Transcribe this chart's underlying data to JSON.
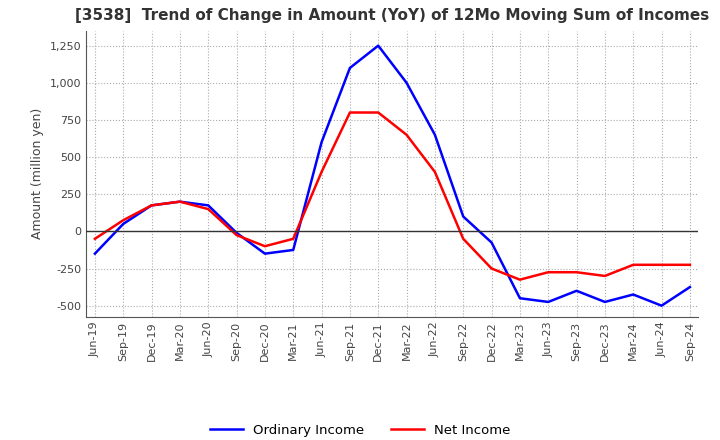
{
  "title": "[3538]  Trend of Change in Amount (YoY) of 12Mo Moving Sum of Incomes",
  "ylabel": "Amount (million yen)",
  "ylim": [
    -575,
    1350
  ],
  "yticks": [
    -500,
    -250,
    0,
    250,
    500,
    750,
    1000,
    1250
  ],
  "x_labels": [
    "Jun-19",
    "Sep-19",
    "Dec-19",
    "Mar-20",
    "Jun-20",
    "Sep-20",
    "Dec-20",
    "Mar-21",
    "Jun-21",
    "Sep-21",
    "Dec-21",
    "Mar-22",
    "Jun-22",
    "Sep-22",
    "Dec-22",
    "Mar-23",
    "Jun-23",
    "Sep-23",
    "Dec-23",
    "Mar-24",
    "Jun-24",
    "Sep-24"
  ],
  "ordinary_income": [
    -150,
    50,
    175,
    200,
    175,
    -10,
    -150,
    -125,
    600,
    1100,
    1250,
    1000,
    650,
    100,
    -75,
    -450,
    -475,
    -400,
    -475,
    -425,
    -500,
    -375
  ],
  "net_income": [
    -50,
    75,
    175,
    200,
    150,
    -25,
    -100,
    -50,
    400,
    800,
    800,
    650,
    400,
    -50,
    -250,
    -325,
    -275,
    -275,
    -300,
    -225,
    -225,
    -225
  ],
  "ordinary_income_color": "#0000ff",
  "net_income_color": "#ff0000",
  "grid_color": "#aaaaaa",
  "background_color": "#ffffff",
  "title_fontsize": 11,
  "tick_fontsize": 8,
  "ylabel_fontsize": 9,
  "legend_labels": [
    "Ordinary Income",
    "Net Income"
  ],
  "line_width": 1.8
}
